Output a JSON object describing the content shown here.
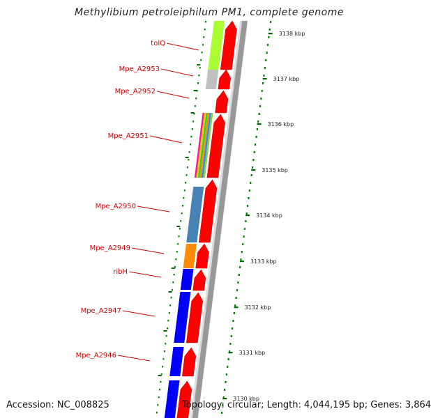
{
  "title": "Methylibium petroleiphilum PM1, complete genome",
  "footer": {
    "accession": "Accession: NC_008825",
    "topology": "Topology: circular; Length: 4,044,195 bp; Genes: 3,864"
  },
  "colors": {
    "gene_label": "#d00000",
    "cds_arrow": "#ff0000",
    "backbone": "#999999",
    "dotted_ring": "#008800",
    "tick": "#006600"
  },
  "gene_labels": [
    "tolQ",
    "Mpe_A2953",
    "Mpe_A2952",
    "Mpe_A2951",
    "Mpe_A2950",
    "Mpe_A2949",
    "ribH",
    "Mpe_A2947",
    "Mpe_A2946"
  ],
  "kbp_labels": [
    "3138 kbp",
    "3137 kbp",
    "3136 kbp",
    "3135 kbp",
    "3134 kbp",
    "3133 kbp",
    "3132 kbp",
    "3131 kbp",
    "3130 kbp"
  ],
  "cog_blocks": [
    {
      "color": "#aaff33"
    },
    {
      "color": "#c0c0c0"
    },
    {
      "color": "multi"
    },
    {
      "color": "#4682b4"
    },
    {
      "color": "#ff8c00"
    },
    {
      "color": "#0000ff"
    },
    {
      "color": "#0000ff"
    },
    {
      "color": "#0000ff"
    },
    {
      "color": "#0000ff"
    }
  ]
}
